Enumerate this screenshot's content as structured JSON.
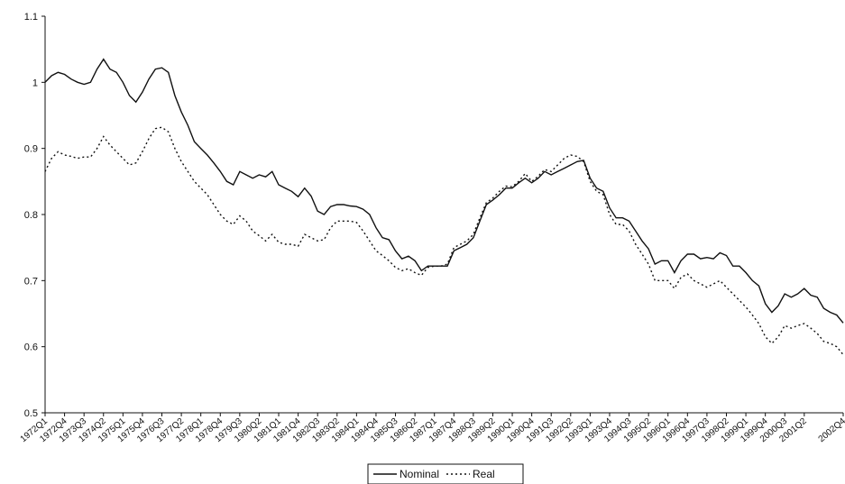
{
  "chart_data": {
    "type": "line",
    "categories": [
      "1972Q1",
      null,
      null,
      "1972Q4",
      null,
      null,
      "1973Q3",
      null,
      null,
      "1974Q2",
      null,
      null,
      "1975Q1",
      null,
      null,
      "1975Q4",
      null,
      null,
      "1976Q3",
      null,
      null,
      "1977Q2",
      null,
      null,
      "1978Q1",
      null,
      null,
      "1978Q4",
      null,
      null,
      "1979Q3",
      null,
      null,
      "1980Q2",
      null,
      null,
      "1981Q1",
      null,
      null,
      "1981Q4",
      null,
      null,
      "1982Q3",
      null,
      null,
      "1983Q2",
      null,
      null,
      "1984Q1",
      null,
      null,
      "1984Q4",
      null,
      null,
      "1985Q3",
      null,
      null,
      "1986Q2",
      null,
      null,
      "1987Q1",
      null,
      null,
      "1987Q4",
      null,
      null,
      "1988Q3",
      null,
      null,
      "1989Q2",
      null,
      null,
      "1990Q1",
      null,
      null,
      "1990Q4",
      null,
      null,
      "1991Q3",
      null,
      null,
      "1992Q2",
      null,
      null,
      "1993Q1",
      null,
      null,
      "1993Q4",
      null,
      null,
      "1994Q3",
      null,
      null,
      "1995Q2",
      null,
      null,
      "1996Q1",
      null,
      null,
      "1996Q4",
      null,
      null,
      "1997Q3",
      null,
      null,
      "1998Q2",
      null,
      null,
      "1999Q1",
      null,
      null,
      "1999Q4",
      null,
      null,
      "2000Q3",
      null,
      null,
      "2001Q2",
      null,
      null,
      null,
      null,
      null,
      "2002Q4"
    ],
    "series": [
      {
        "name": "Nominal",
        "color": "#111111",
        "dash": "none",
        "values": [
          1.0,
          1.01,
          1.015,
          1.012,
          1.005,
          1.0,
          0.997,
          1.0,
          1.02,
          1.035,
          1.02,
          1.015,
          1.0,
          0.98,
          0.97,
          0.985,
          1.005,
          1.02,
          1.022,
          1.015,
          0.98,
          0.955,
          0.935,
          0.91,
          0.9,
          0.89,
          0.878,
          0.865,
          0.85,
          0.845,
          0.865,
          0.86,
          0.855,
          0.86,
          0.857,
          0.865,
          0.845,
          0.84,
          0.835,
          0.827,
          0.84,
          0.828,
          0.805,
          0.8,
          0.812,
          0.815,
          0.815,
          0.813,
          0.812,
          0.808,
          0.8,
          0.78,
          0.765,
          0.762,
          0.745,
          0.733,
          0.737,
          0.73,
          0.715,
          0.722,
          0.722,
          0.722,
          0.722,
          0.745,
          0.75,
          0.755,
          0.765,
          0.79,
          0.815,
          0.822,
          0.83,
          0.84,
          0.84,
          0.848,
          0.855,
          0.848,
          0.855,
          0.865,
          0.86,
          0.865,
          0.87,
          0.875,
          0.88,
          0.882,
          0.855,
          0.84,
          0.835,
          0.81,
          0.795,
          0.795,
          0.79,
          0.775,
          0.76,
          0.748,
          0.725,
          0.73,
          0.73,
          0.712,
          0.73,
          0.74,
          0.74,
          0.733,
          0.735,
          0.733,
          0.742,
          0.738,
          0.722,
          0.722,
          0.712,
          0.7,
          0.692,
          0.665,
          0.652,
          0.662,
          0.68,
          0.675,
          0.68,
          0.688,
          0.678,
          0.675,
          0.658,
          0.652,
          0.648,
          0.636
        ]
      },
      {
        "name": "Real",
        "color": "#111111",
        "dash": "2,3",
        "values": [
          0.865,
          0.885,
          0.895,
          0.89,
          0.888,
          0.885,
          0.887,
          0.887,
          0.9,
          0.918,
          0.905,
          0.895,
          0.885,
          0.875,
          0.878,
          0.895,
          0.915,
          0.93,
          0.932,
          0.925,
          0.9,
          0.88,
          0.865,
          0.85,
          0.84,
          0.83,
          0.815,
          0.8,
          0.79,
          0.785,
          0.798,
          0.79,
          0.775,
          0.768,
          0.76,
          0.77,
          0.758,
          0.755,
          0.755,
          0.752,
          0.77,
          0.765,
          0.76,
          0.762,
          0.78,
          0.79,
          0.79,
          0.79,
          0.788,
          0.775,
          0.76,
          0.745,
          0.738,
          0.73,
          0.72,
          0.715,
          0.718,
          0.712,
          0.708,
          0.72,
          0.722,
          0.722,
          0.725,
          0.75,
          0.755,
          0.76,
          0.77,
          0.795,
          0.818,
          0.825,
          0.835,
          0.843,
          0.842,
          0.85,
          0.862,
          0.85,
          0.858,
          0.868,
          0.865,
          0.875,
          0.885,
          0.89,
          0.888,
          0.88,
          0.85,
          0.835,
          0.83,
          0.8,
          0.785,
          0.785,
          0.775,
          0.755,
          0.74,
          0.725,
          0.7,
          0.7,
          0.7,
          0.688,
          0.705,
          0.71,
          0.7,
          0.695,
          0.69,
          0.695,
          0.7,
          0.69,
          0.68,
          0.67,
          0.66,
          0.648,
          0.635,
          0.615,
          0.605,
          0.615,
          0.632,
          0.628,
          0.632,
          0.635,
          0.628,
          0.62,
          0.608,
          0.605,
          0.6,
          0.588
        ]
      }
    ],
    "ylim": [
      0.5,
      1.1
    ],
    "yticks": [
      0.5,
      0.6,
      0.7,
      0.8,
      0.9,
      1,
      1.1
    ],
    "grid": false,
    "legend": "bottom"
  }
}
